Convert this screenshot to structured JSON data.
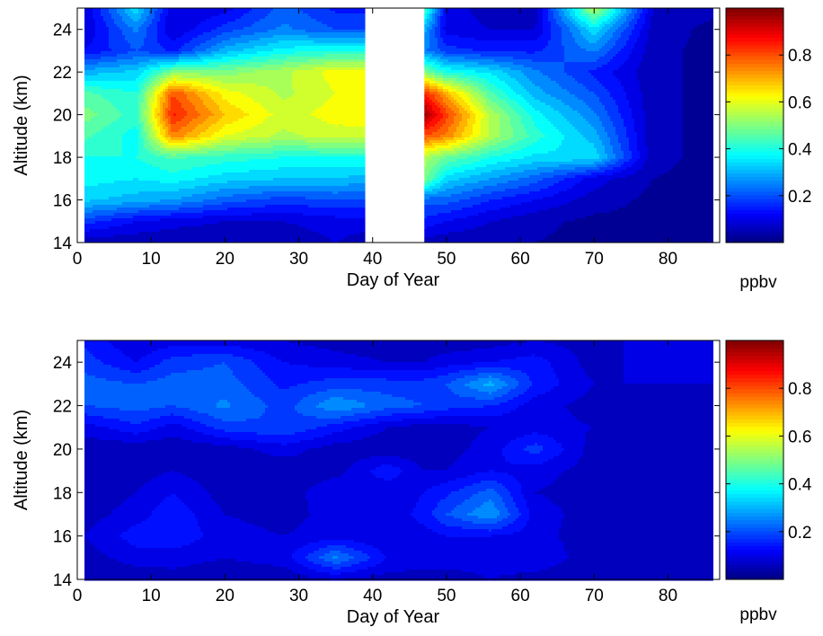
{
  "chart_data": [
    {
      "type": "heatmap",
      "xlabel": "Day of Year",
      "ylabel": "Altitude (km)",
      "xlim": [
        0,
        87
      ],
      "ylim": [
        14,
        25
      ],
      "xticks": [
        0,
        10,
        20,
        30,
        40,
        50,
        60,
        70,
        80
      ],
      "yticks": [
        14,
        16,
        18,
        20,
        22,
        24
      ],
      "colorbar": {
        "label": "ppbv",
        "ticks": [
          0.2,
          0.4,
          0.6,
          0.8
        ],
        "range": [
          0,
          1
        ],
        "colormap": "jet"
      },
      "x": [
        1,
        8,
        13,
        20,
        28,
        35,
        39,
        47,
        50,
        56,
        62,
        70,
        78,
        86
      ],
      "y": [
        14,
        15,
        16,
        17,
        18,
        19,
        20,
        21,
        22,
        23,
        24,
        25
      ],
      "missing_x_range": [
        39,
        47
      ],
      "z": [
        [
          0.05,
          0.05,
          0.04,
          0.04,
          0.05,
          0.08,
          0.06,
          0.06,
          0.05,
          0.05,
          0.04,
          0.03,
          0.03,
          0.03
        ],
        [
          0.18,
          0.12,
          0.1,
          0.08,
          0.08,
          0.1,
          0.1,
          0.15,
          0.12,
          0.08,
          0.05,
          0.03,
          0.03,
          0.03
        ],
        [
          0.33,
          0.3,
          0.28,
          0.22,
          0.18,
          0.2,
          0.2,
          0.22,
          0.22,
          0.16,
          0.12,
          0.06,
          0.03,
          0.03
        ],
        [
          0.38,
          0.36,
          0.38,
          0.34,
          0.32,
          0.32,
          0.3,
          0.5,
          0.34,
          0.28,
          0.22,
          0.1,
          0.04,
          0.03
        ],
        [
          0.4,
          0.4,
          0.45,
          0.42,
          0.4,
          0.4,
          0.4,
          0.55,
          0.48,
          0.4,
          0.35,
          0.35,
          0.05,
          0.03
        ],
        [
          0.45,
          0.38,
          0.75,
          0.6,
          0.55,
          0.58,
          0.58,
          0.8,
          0.75,
          0.55,
          0.42,
          0.3,
          0.05,
          0.03
        ],
        [
          0.5,
          0.42,
          0.85,
          0.68,
          0.58,
          0.62,
          0.62,
          0.98,
          0.82,
          0.55,
          0.38,
          0.25,
          0.05,
          0.03
        ],
        [
          0.45,
          0.4,
          0.8,
          0.62,
          0.55,
          0.6,
          0.6,
          0.85,
          0.7,
          0.45,
          0.3,
          0.2,
          0.05,
          0.03
        ],
        [
          0.3,
          0.33,
          0.5,
          0.5,
          0.55,
          0.62,
          0.62,
          0.5,
          0.4,
          0.35,
          0.25,
          0.15,
          0.05,
          0.03
        ],
        [
          0.12,
          0.2,
          0.15,
          0.3,
          0.38,
          0.4,
          0.4,
          0.25,
          0.18,
          0.15,
          0.15,
          0.25,
          0.05,
          0.03
        ],
        [
          0.08,
          0.25,
          0.08,
          0.18,
          0.25,
          0.2,
          0.2,
          0.3,
          0.1,
          0.08,
          0.08,
          0.35,
          0.06,
          0.03
        ],
        [
          0.08,
          0.35,
          0.08,
          0.1,
          0.22,
          0.15,
          0.15,
          0.45,
          0.1,
          0.06,
          0.06,
          0.55,
          0.08,
          0.05
        ]
      ]
    },
    {
      "type": "heatmap",
      "xlabel": "Day of Year",
      "ylabel": "Altitude (km)",
      "xlim": [
        0,
        87
      ],
      "ylim": [
        14,
        25
      ],
      "xticks": [
        0,
        10,
        20,
        30,
        40,
        50,
        60,
        70,
        80
      ],
      "yticks": [
        14,
        16,
        18,
        20,
        22,
        24
      ],
      "colorbar": {
        "label": "ppbv",
        "ticks": [
          0.2,
          0.4,
          0.6,
          0.8
        ],
        "range": [
          0,
          1
        ],
        "colormap": "jet"
      },
      "x": [
        1,
        8,
        13,
        20,
        28,
        35,
        42,
        47,
        50,
        56,
        62,
        70,
        78,
        86
      ],
      "y": [
        14,
        15,
        16,
        17,
        18,
        19,
        20,
        21,
        22,
        23,
        24,
        25
      ],
      "z": [
        [
          0.04,
          0.05,
          0.06,
          0.05,
          0.05,
          0.08,
          0.06,
          0.06,
          0.06,
          0.08,
          0.06,
          0.04,
          0.04,
          0.04
        ],
        [
          0.06,
          0.1,
          0.1,
          0.08,
          0.1,
          0.25,
          0.12,
          0.1,
          0.1,
          0.1,
          0.12,
          0.05,
          0.05,
          0.05
        ],
        [
          0.08,
          0.14,
          0.15,
          0.1,
          0.08,
          0.1,
          0.08,
          0.1,
          0.12,
          0.12,
          0.1,
          0.05,
          0.05,
          0.05
        ],
        [
          0.06,
          0.1,
          0.15,
          0.08,
          0.06,
          0.1,
          0.08,
          0.14,
          0.2,
          0.28,
          0.1,
          0.06,
          0.06,
          0.06
        ],
        [
          0.05,
          0.08,
          0.12,
          0.06,
          0.05,
          0.12,
          0.08,
          0.12,
          0.15,
          0.22,
          0.08,
          0.06,
          0.06,
          0.06
        ],
        [
          0.05,
          0.06,
          0.08,
          0.05,
          0.05,
          0.06,
          0.15,
          0.08,
          0.08,
          0.12,
          0.1,
          0.06,
          0.06,
          0.06
        ],
        [
          0.05,
          0.05,
          0.05,
          0.06,
          0.1,
          0.06,
          0.05,
          0.05,
          0.06,
          0.1,
          0.18,
          0.06,
          0.06,
          0.06
        ],
        [
          0.1,
          0.15,
          0.1,
          0.18,
          0.2,
          0.14,
          0.08,
          0.06,
          0.06,
          0.08,
          0.1,
          0.08,
          0.06,
          0.06
        ],
        [
          0.2,
          0.22,
          0.2,
          0.25,
          0.18,
          0.28,
          0.22,
          0.2,
          0.18,
          0.16,
          0.1,
          0.06,
          0.06,
          0.06
        ],
        [
          0.22,
          0.2,
          0.22,
          0.22,
          0.15,
          0.18,
          0.18,
          0.18,
          0.2,
          0.3,
          0.15,
          0.08,
          0.08,
          0.08
        ],
        [
          0.18,
          0.12,
          0.18,
          0.2,
          0.12,
          0.1,
          0.08,
          0.08,
          0.1,
          0.12,
          0.14,
          0.06,
          0.1,
          0.1
        ],
        [
          0.15,
          0.08,
          0.1,
          0.1,
          0.08,
          0.06,
          0.05,
          0.06,
          0.05,
          0.06,
          0.08,
          0.06,
          0.1,
          0.1
        ]
      ]
    }
  ]
}
